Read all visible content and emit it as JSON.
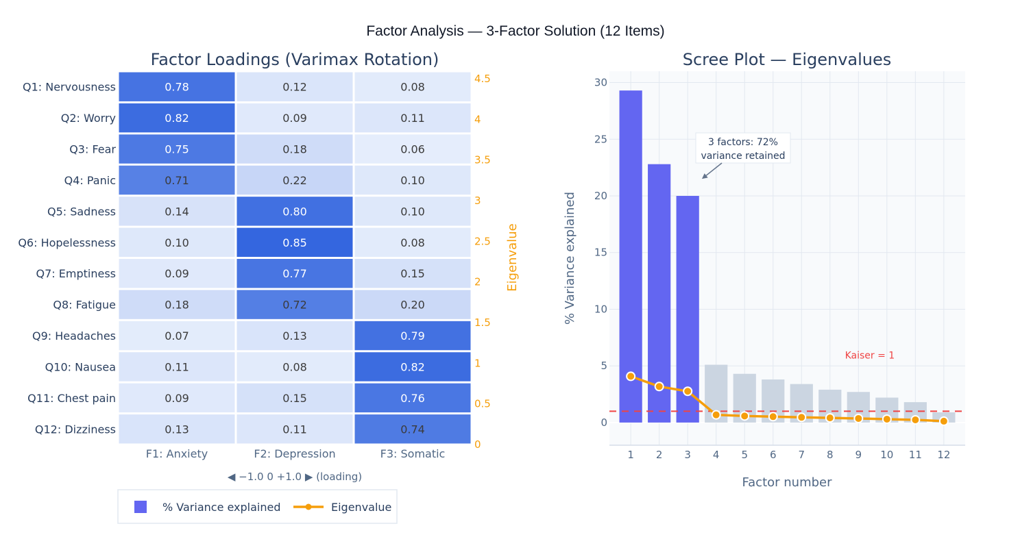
{
  "figure_title": "Factor Analysis — 3-Factor Solution (12 Items)",
  "chart_data": [
    {
      "type": "heatmap",
      "title": "Factor Loadings (Varimax Rotation)",
      "rows": [
        "Q1: Nervousness",
        "Q2: Worry",
        "Q3: Fear",
        "Q4: Panic",
        "Q5: Sadness",
        "Q6: Hopelessness",
        "Q7: Emptiness",
        "Q8: Fatigue",
        "Q9: Headaches",
        "Q10: Nausea",
        "Q11: Chest pain",
        "Q12: Dizziness"
      ],
      "columns": [
        "F1: Anxiety",
        "F2: Depression",
        "F3: Somatic"
      ],
      "values": [
        [
          0.78,
          0.12,
          0.08
        ],
        [
          0.82,
          0.09,
          0.11
        ],
        [
          0.75,
          0.18,
          0.06
        ],
        [
          0.71,
          0.22,
          0.1
        ],
        [
          0.14,
          0.8,
          0.1
        ],
        [
          0.1,
          0.85,
          0.08
        ],
        [
          0.09,
          0.77,
          0.15
        ],
        [
          0.18,
          0.72,
          0.2
        ],
        [
          0.07,
          0.13,
          0.79
        ],
        [
          0.11,
          0.08,
          0.82
        ],
        [
          0.09,
          0.15,
          0.76
        ],
        [
          0.13,
          0.11,
          0.74
        ]
      ],
      "zrange": [
        -1,
        1
      ],
      "colorbar_label": "◀ −1.0   0   +1.0 ▶   (loading)",
      "colors": {
        "low": "#eef4fd",
        "high": "#3466df"
      },
      "secondary_axis": {
        "title": "Eigenvalue",
        "range": [
          0,
          4.5
        ],
        "ticks": [
          "0",
          "0.5",
          "1",
          "1.5",
          "2",
          "2.5",
          "3",
          "3.5",
          "4",
          "4.5"
        ],
        "color": "#f59e0b"
      }
    },
    {
      "type": "bar",
      "title": "Scree Plot — Eigenvalues",
      "xlabel": "Factor number",
      "ylabel": "% Variance explained",
      "x": [
        1,
        2,
        3,
        4,
        5,
        6,
        7,
        8,
        9,
        10,
        11,
        12
      ],
      "xticks": [
        "1",
        "2",
        "3",
        "4",
        "5",
        "6",
        "7",
        "8",
        "9",
        "10",
        "11",
        "12"
      ],
      "ylim": [
        -2,
        31
      ],
      "yticks": [
        "0",
        "5",
        "10",
        "15",
        "20",
        "25",
        "30"
      ],
      "grid": true,
      "series": [
        {
          "name": "% Variance explained",
          "type": "bar",
          "values": [
            29.3,
            22.8,
            20.0,
            5.1,
            4.3,
            3.8,
            3.4,
            2.9,
            2.7,
            2.2,
            1.8,
            0.9
          ],
          "retained_color": "#6366f1",
          "discarded_color": "#cbd5e1",
          "retained_count": 3
        },
        {
          "name": "Eigenvalue",
          "type": "line",
          "values": [
            4.08,
            3.18,
            2.76,
            0.68,
            0.58,
            0.52,
            0.46,
            0.41,
            0.36,
            0.3,
            0.24,
            0.12
          ],
          "color": "#f59e0b"
        }
      ],
      "reference_line": {
        "y": 1,
        "label": "Kaiser = 1",
        "color": "#ef4444",
        "style": "dashed"
      },
      "annotation": {
        "text_lines": [
          "3 factors: 72%",
          "variance retained"
        ],
        "points_to": [
          3.5,
          21.5
        ]
      }
    }
  ],
  "legend": {
    "items": [
      {
        "label": "% Variance explained",
        "symbol": "square",
        "color": "#6366f1"
      },
      {
        "label": "Eigenvalue",
        "symbol": "line-marker",
        "color": "#f59e0b"
      }
    ]
  }
}
